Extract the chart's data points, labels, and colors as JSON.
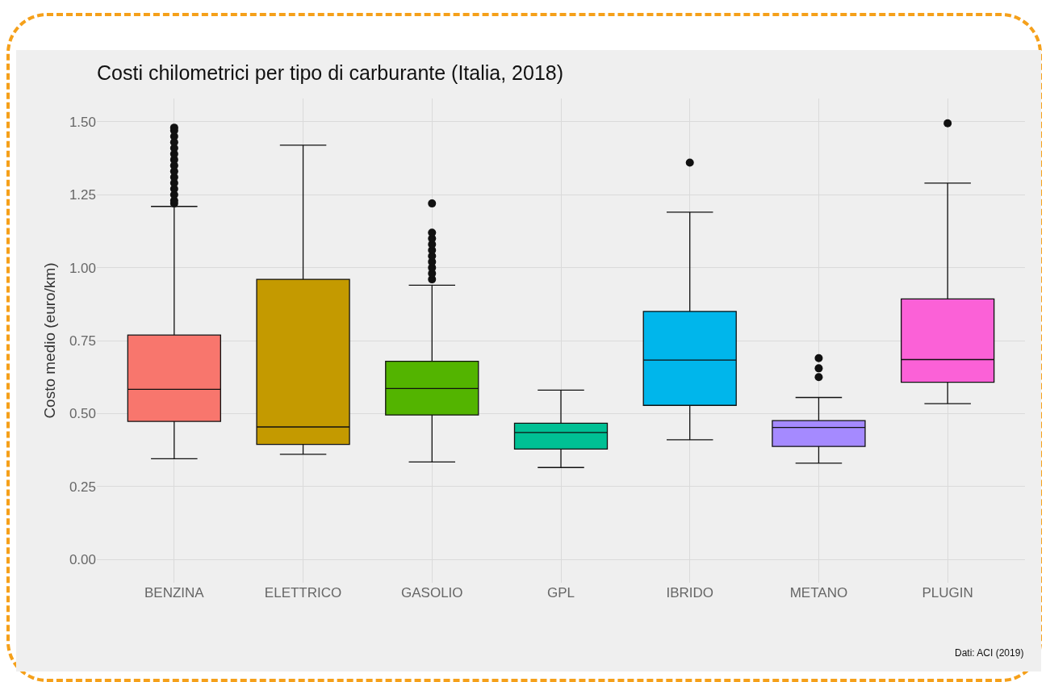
{
  "chart_data": {
    "type": "box",
    "title": "Costi chilometrici per tipo di carburante (Italia, 2018)",
    "ylabel": "Costo medio (euro/km)",
    "annotations": [
      "Dati: ACI (2019)"
    ],
    "categories": [
      "BENZINA",
      "ELETTRICO",
      "GASOLIO",
      "GPL",
      "IBRIDO",
      "METANO",
      "PLUGIN"
    ],
    "colors": [
      "#f8766d",
      "#c49a00",
      "#53b400",
      "#00c094",
      "#00b6eb",
      "#a58aff",
      "#fb61d7"
    ],
    "boxes": [
      {
        "low": 0.345,
        "q1": 0.473,
        "median": 0.583,
        "q3": 0.769,
        "high": 1.21,
        "outliers": [
          1.22,
          1.23,
          1.25,
          1.27,
          1.29,
          1.31,
          1.33,
          1.35,
          1.37,
          1.39,
          1.41,
          1.43,
          1.45,
          1.47,
          1.48
        ]
      },
      {
        "low": 0.36,
        "q1": 0.394,
        "median": 0.454,
        "q3": 0.96,
        "high": 1.42
      },
      {
        "low": 0.334,
        "q1": 0.495,
        "median": 0.586,
        "q3": 0.679,
        "high": 0.94,
        "outliers": [
          0.96,
          0.98,
          1.0,
          1.02,
          1.04,
          1.06,
          1.08,
          1.1,
          1.12,
          1.22
        ]
      },
      {
        "low": 0.315,
        "q1": 0.378,
        "median": 0.435,
        "q3": 0.467,
        "high": 0.58
      },
      {
        "low": 0.41,
        "q1": 0.528,
        "median": 0.683,
        "q3": 0.85,
        "high": 1.19,
        "outliers": [
          1.36
        ]
      },
      {
        "low": 0.33,
        "q1": 0.387,
        "median": 0.452,
        "q3": 0.476,
        "high": 0.555,
        "outliers": [
          0.625,
          0.655,
          0.69
        ]
      },
      {
        "low": 0.534,
        "q1": 0.607,
        "median": 0.685,
        "q3": 0.893,
        "high": 1.29,
        "outliers": [
          1.495
        ]
      }
    ],
    "ylim": [
      -0.08,
      1.58
    ],
    "yticks": [
      {
        "value": 0,
        "label": "0.00"
      },
      {
        "value": 0.25,
        "label": "0.25"
      },
      {
        "value": 0.5,
        "label": "0.50"
      },
      {
        "value": 0.75,
        "label": "0.75"
      },
      {
        "value": 1,
        "label": "1.00"
      },
      {
        "value": 1.25,
        "label": "1.25"
      },
      {
        "value": 1.5,
        "label": "1.50"
      }
    ],
    "grid": true,
    "legend": false,
    "marker": "circle"
  }
}
